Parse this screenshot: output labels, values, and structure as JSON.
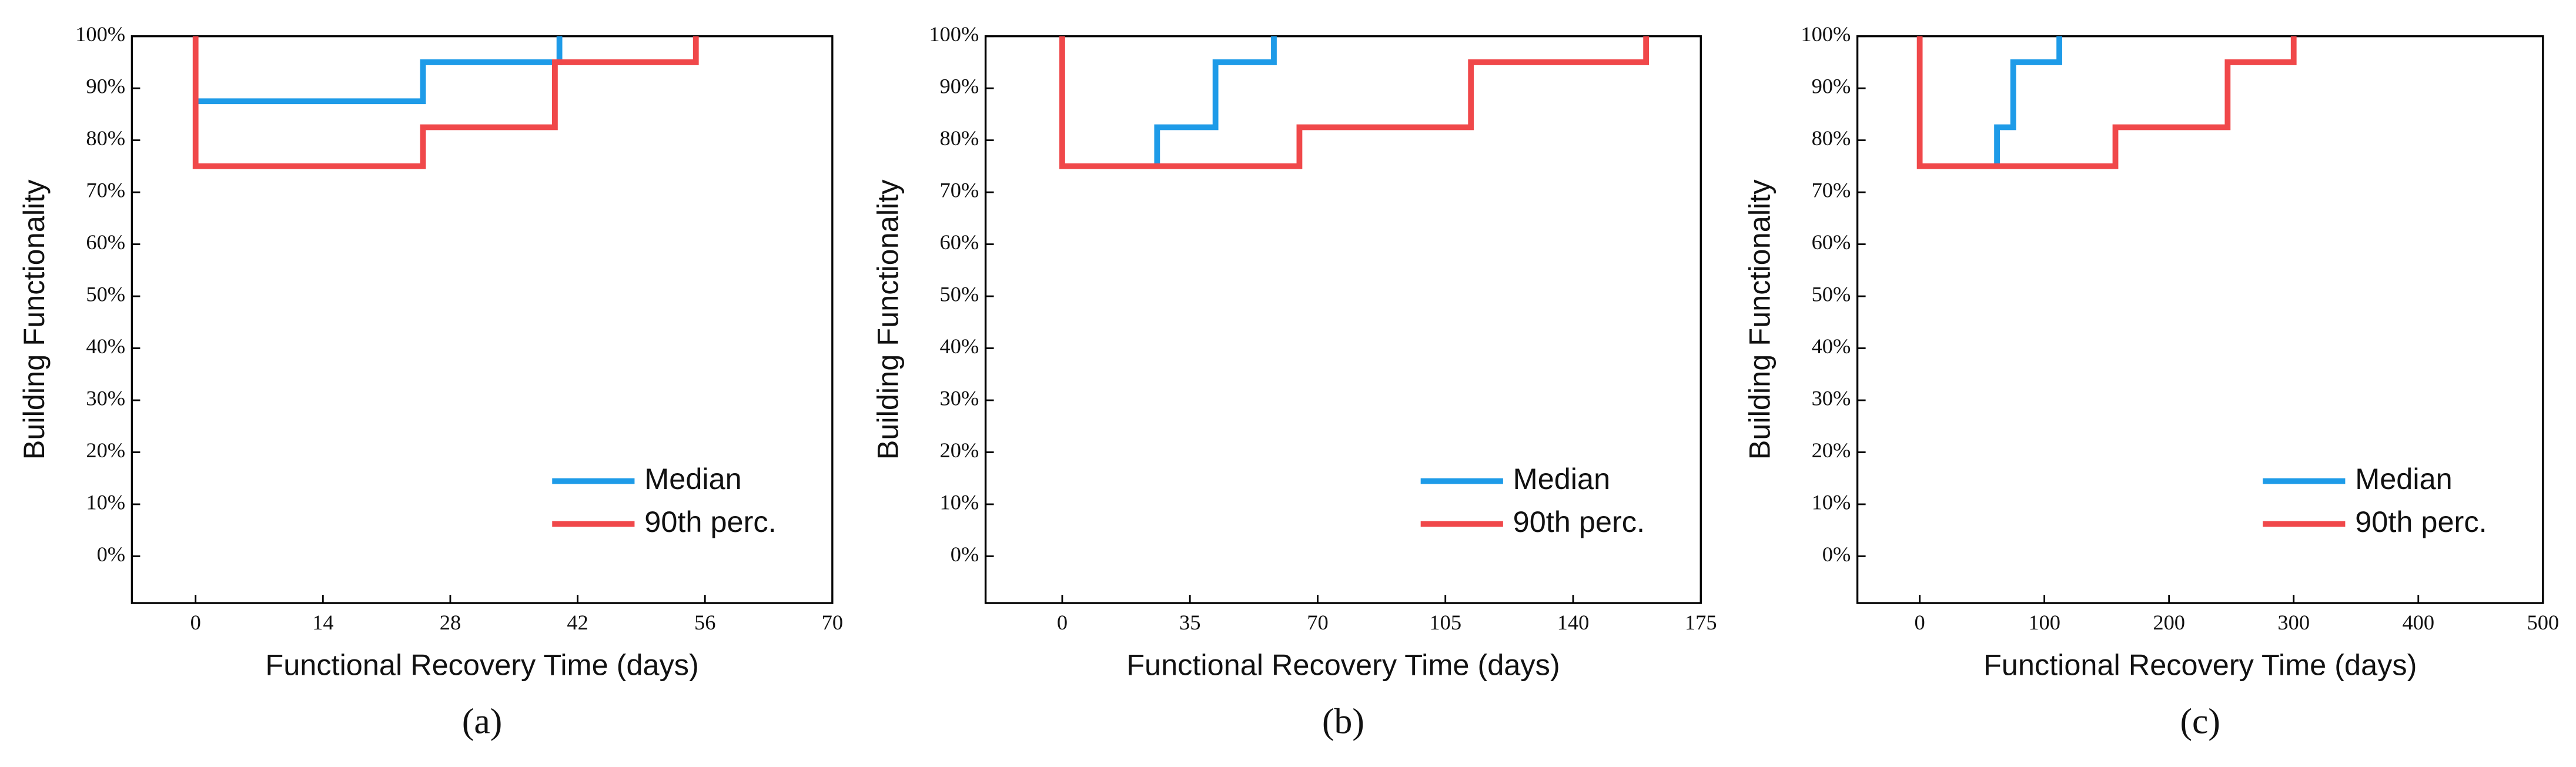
{
  "chart_data": [
    {
      "type": "line",
      "step": "post",
      "panel": "(a)",
      "xlabel": "Functional Recovery Time (days)",
      "ylabel": "Building Functionality",
      "xlim": [
        -7,
        70
      ],
      "xticks": [
        0,
        14,
        28,
        42,
        56,
        70
      ],
      "ylim": [
        -9,
        100
      ],
      "yticks": [
        {
          "value": 0,
          "label": "0%"
        },
        {
          "value": 10,
          "label": "10%"
        },
        {
          "value": 20,
          "label": "20%"
        },
        {
          "value": 30,
          "label": "30%"
        },
        {
          "value": 40,
          "label": "40%"
        },
        {
          "value": 50,
          "label": "50%"
        },
        {
          "value": 60,
          "label": "60%"
        },
        {
          "value": 70,
          "label": "70%"
        },
        {
          "value": 80,
          "label": "80%"
        },
        {
          "value": 90,
          "label": "90%"
        },
        {
          "value": 100,
          "label": "100%"
        }
      ],
      "legend": "lower right",
      "series": [
        {
          "name": "Median",
          "color": "#1e9be8",
          "x": [
            0,
            25,
            40
          ],
          "values": [
            87.5,
            95,
            100
          ]
        },
        {
          "name": "90th perc.",
          "color": "#f0484a",
          "x": [
            0,
            0,
            25,
            39.5,
            55
          ],
          "values": [
            100,
            75,
            82.5,
            95,
            100
          ]
        }
      ]
    },
    {
      "type": "line",
      "step": "post",
      "panel": "(b)",
      "xlabel": "Functional Recovery Time (days)",
      "ylabel": "Building Functionality",
      "xlim": [
        -21,
        175
      ],
      "xticks": [
        0,
        35,
        70,
        105,
        140,
        175
      ],
      "ylim": [
        -9,
        100
      ],
      "yticks": [
        {
          "value": 0,
          "label": "0%"
        },
        {
          "value": 10,
          "label": "10%"
        },
        {
          "value": 20,
          "label": "20%"
        },
        {
          "value": 30,
          "label": "30%"
        },
        {
          "value": 40,
          "label": "40%"
        },
        {
          "value": 50,
          "label": "50%"
        },
        {
          "value": 60,
          "label": "60%"
        },
        {
          "value": 70,
          "label": "70%"
        },
        {
          "value": 80,
          "label": "80%"
        },
        {
          "value": 90,
          "label": "90%"
        },
        {
          "value": 100,
          "label": "100%"
        }
      ],
      "legend": "lower right",
      "series": [
        {
          "name": "Median",
          "color": "#1e9be8",
          "x": [
            26,
            26,
            42,
            58
          ],
          "values": [
            75,
            82.5,
            95,
            100
          ]
        },
        {
          "name": "90th perc.",
          "color": "#f0484a",
          "x": [
            0,
            0,
            65,
            112,
            160
          ],
          "values": [
            100,
            75,
            82.5,
            95,
            100
          ]
        }
      ]
    },
    {
      "type": "line",
      "step": "post",
      "panel": "(c)",
      "xlabel": "Functional Recovery Time (days)",
      "ylabel": "Building Functionality",
      "xlim": [
        -50,
        500
      ],
      "xticks": [
        0,
        100,
        200,
        300,
        400,
        500
      ],
      "ylim": [
        -9,
        100
      ],
      "yticks": [
        {
          "value": 0,
          "label": "0%"
        },
        {
          "value": 10,
          "label": "10%"
        },
        {
          "value": 20,
          "label": "20%"
        },
        {
          "value": 30,
          "label": "30%"
        },
        {
          "value": 40,
          "label": "40%"
        },
        {
          "value": 50,
          "label": "50%"
        },
        {
          "value": 60,
          "label": "60%"
        },
        {
          "value": 70,
          "label": "70%"
        },
        {
          "value": 80,
          "label": "80%"
        },
        {
          "value": 90,
          "label": "90%"
        },
        {
          "value": 100,
          "label": "100%"
        }
      ],
      "legend": "lower right",
      "series": [
        {
          "name": "Median",
          "color": "#1e9be8",
          "x": [
            62,
            62,
            75,
            112
          ],
          "values": [
            75,
            82.5,
            95,
            100
          ]
        },
        {
          "name": "90th perc.",
          "color": "#f0484a",
          "x": [
            0,
            0,
            157,
            247,
            300
          ],
          "values": [
            100,
            75,
            82.5,
            95,
            100
          ]
        }
      ]
    }
  ]
}
